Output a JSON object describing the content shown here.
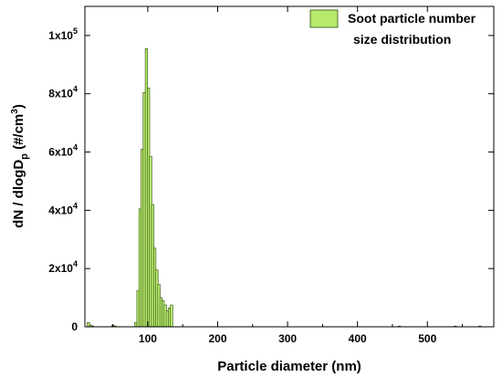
{
  "chart_data": {
    "type": "bar",
    "xlabel": "Particle diameter (nm)",
    "ylabel": "dN / dlogD_p (#/cm^3)",
    "ylabel_parts": {
      "main": "dN / dlogD",
      "sub": "p",
      "mid": " (#/cm",
      "sup": "3",
      "end": ")"
    },
    "xlim": [
      10,
      595
    ],
    "ylim": [
      0,
      110000
    ],
    "x_ticks": [
      {
        "value": 100,
        "label": "100"
      },
      {
        "value": 200,
        "label": "200"
      },
      {
        "value": 300,
        "label": "300"
      },
      {
        "value": 400,
        "label": "400"
      },
      {
        "value": 500,
        "label": "500"
      }
    ],
    "y_ticks": [
      {
        "value": 0,
        "label": "0",
        "mant": "",
        "exp": ""
      },
      {
        "value": 20000,
        "label": "",
        "mant": "2x10",
        "exp": "4"
      },
      {
        "value": 40000,
        "label": "",
        "mant": "4x10",
        "exp": "4"
      },
      {
        "value": 60000,
        "label": "",
        "mant": "6x10",
        "exp": "4"
      },
      {
        "value": 80000,
        "label": "",
        "mant": "8x10",
        "exp": "4"
      },
      {
        "value": 100000,
        "label": "",
        "mant": "1x10",
        "exp": "5"
      }
    ],
    "legend": {
      "label_line1": "Soot particle number",
      "label_line2": "size distribution",
      "position": "top-right"
    },
    "bar_color": "#b7ea6a",
    "bar_width_nm": 3.4,
    "series": [
      {
        "name": "Soot particle number size distribution",
        "x": [
          15,
          18,
          21,
          50,
          53,
          83,
          86,
          89,
          92,
          95,
          98,
          101,
          104,
          107,
          110,
          113,
          116,
          119,
          122,
          125,
          128,
          131,
          134,
          460,
          540,
          575
        ],
        "values": [
          1500,
          600,
          300,
          500,
          300,
          1500,
          12500,
          40500,
          61000,
          80500,
          95500,
          82000,
          58500,
          42000,
          27000,
          19500,
          14500,
          10000,
          9000,
          7500,
          5500,
          6500,
          7500,
          100,
          100,
          150
        ]
      }
    ]
  }
}
